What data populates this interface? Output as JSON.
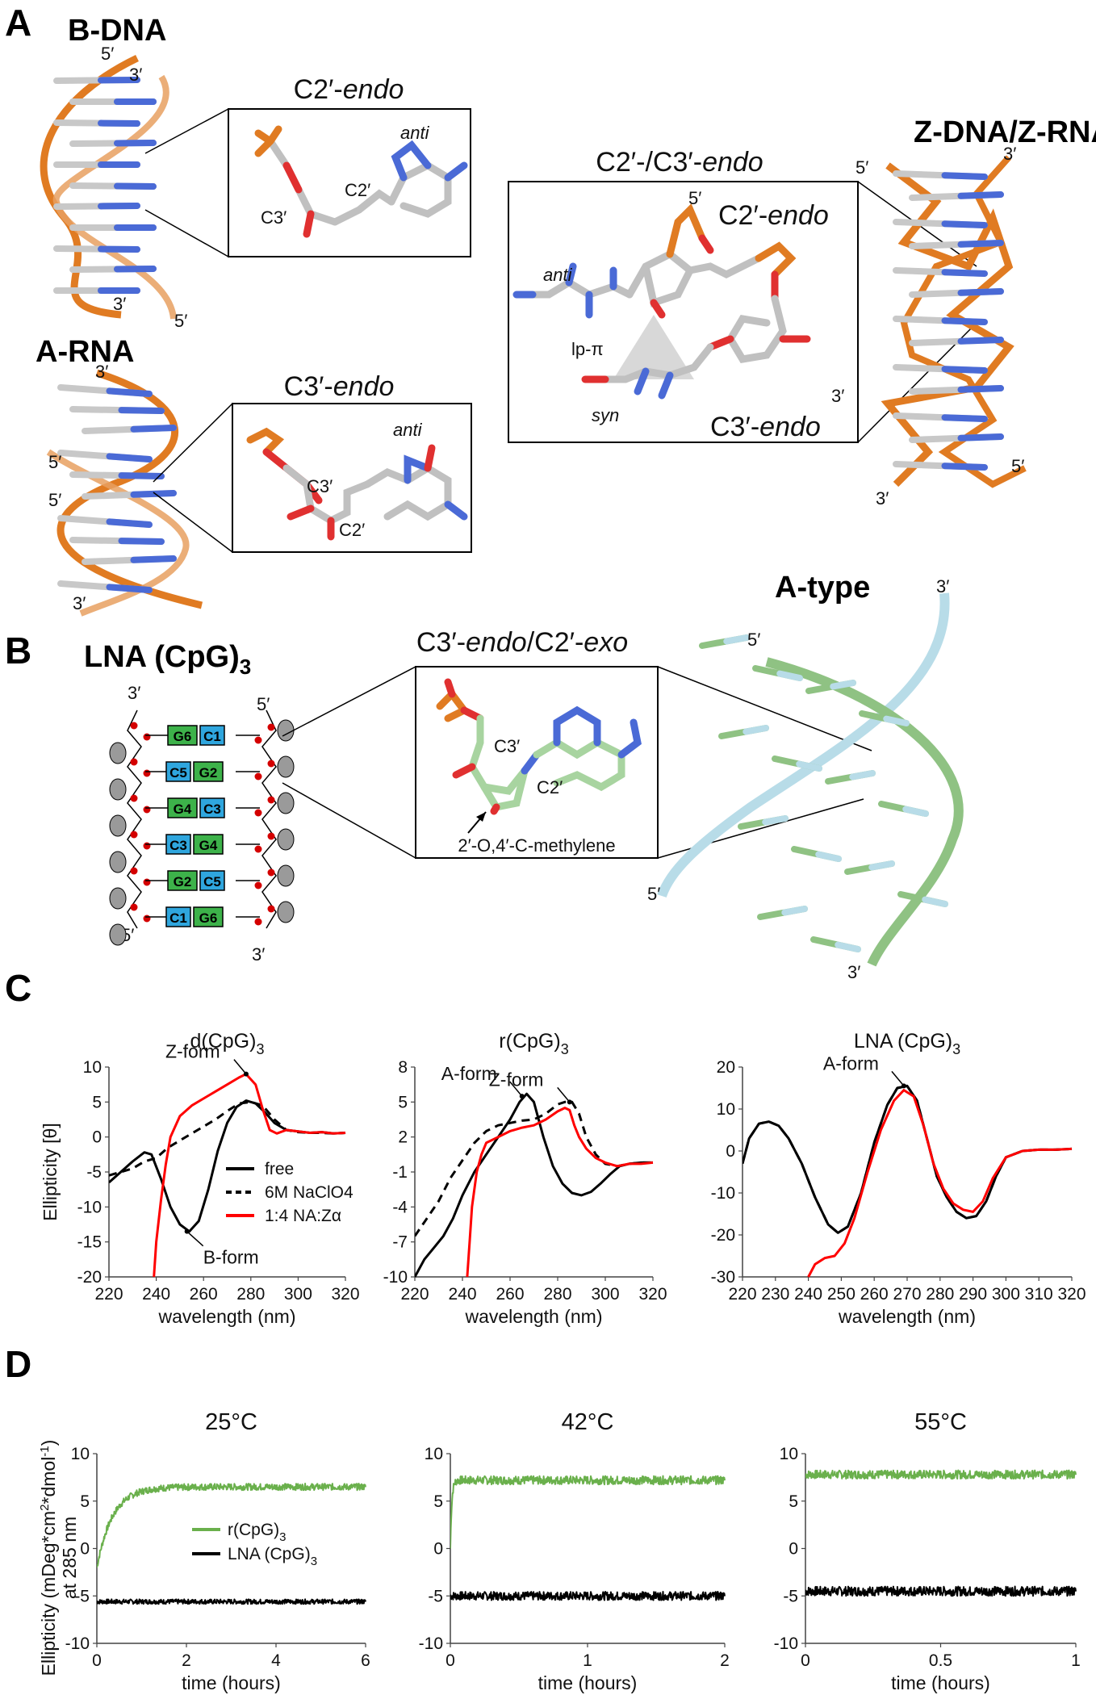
{
  "panelA": {
    "letter": "A",
    "bdna": {
      "title": "B-DNA",
      "end5_top": "5′",
      "end3_top": "3′",
      "end3_bot": "3′",
      "end5_bot": "5′"
    },
    "inset_c2endo": {
      "title_prefix": "C2′-",
      "title_italic": "endo",
      "anti": "anti",
      "c2": "C2′",
      "c3": "C3′"
    },
    "arna": {
      "title": "A-RNA",
      "end3_top": "3′",
      "end5_a": "5′",
      "end5_b": "5′",
      "end3_bot": "3′"
    },
    "inset_c3endo": {
      "title_prefix": "C3′-",
      "title_italic": "endo",
      "anti": "anti",
      "c3": "C3′",
      "c2": "C2′"
    },
    "zdna": {
      "title": "Z-DNA/Z-RNA",
      "end5_top": "5′",
      "end3_top": "3′",
      "end5_bot": "5′",
      "end3_bot": "3′"
    },
    "inset_mixed": {
      "title_prefix": "C2′-/C3′-",
      "title_italic": "endo",
      "anti": "anti",
      "syn": "syn",
      "lp": "lp-π",
      "five": "5′",
      "three": "3′",
      "c2_prefix": "C2′-",
      "c2_italic": "endo",
      "c3_prefix": "C3′-",
      "c3_italic": "endo"
    }
  },
  "panelB": {
    "letter": "B",
    "lna_title": "LNA (CpG)",
    "lna_sub": "3",
    "ladder_top_left": "3′",
    "ladder_top_right": "5′",
    "ladder_bot_left": "5′",
    "ladder_bot_right": "3′",
    "pairs": [
      {
        "left": "G6",
        "right": "C1",
        "leftColor": "#3db24a",
        "rightColor": "#2fa6de"
      },
      {
        "left": "C5",
        "right": "G2",
        "leftColor": "#2fa6de",
        "rightColor": "#3db24a"
      },
      {
        "left": "G4",
        "right": "C3",
        "leftColor": "#3db24a",
        "rightColor": "#2fa6de"
      },
      {
        "left": "C3",
        "right": "G4",
        "leftColor": "#2fa6de",
        "rightColor": "#3db24a"
      },
      {
        "left": "G2",
        "right": "C5",
        "leftColor": "#3db24a",
        "rightColor": "#2fa6de"
      },
      {
        "left": "C1",
        "right": "G6",
        "leftColor": "#2fa6de",
        "rightColor": "#3db24a"
      }
    ],
    "inset": {
      "title_prefix": "C3′-",
      "title_italic1": "endo",
      "title_mid": "/C2′-",
      "title_italic2": "exo",
      "c3": "C3′",
      "c2": "C2′",
      "methylene": "2′-O,4′-C-methylene"
    },
    "atype": {
      "title": "A-type",
      "end3_top": "3′",
      "end5_top": "5′",
      "end5_bot": "5′",
      "end3_bot": "3′"
    }
  },
  "panelC": {
    "letter": "C",
    "ylabel": "Ellipticity [θ]",
    "xlabel": "wavelength (nm)",
    "legend": [
      {
        "name": "free",
        "color": "#000000",
        "dash": "solid"
      },
      {
        "name": "6M NaClO4",
        "color": "#000000",
        "dash": "dashed"
      },
      {
        "name": "1:4 NA:Zα",
        "color": "#ff0000",
        "dash": "solid"
      }
    ]
  },
  "panelD": {
    "letter": "D",
    "ylabel_line1": "Ellipticity (mDeg*cm",
    "ylabel_sup1": "2",
    "ylabel_mid": "*dmol",
    "ylabel_sup2": "-1",
    "ylabel_end": ")",
    "ylabel_line2": "at 285 nm",
    "xlabel": "time (hours)",
    "legend": [
      {
        "name": "r(CpG)",
        "sub": "3",
        "color": "#6ab04c"
      },
      {
        "name": "LNA (CpG)",
        "sub": "3",
        "color": "#000000"
      }
    ]
  },
  "chart_data": [
    {
      "type": "line",
      "title": "d(CpG)3",
      "xlabel": "wavelength (nm)",
      "ylabel": "Ellipticity [θ]",
      "xlim": [
        220,
        320
      ],
      "ylim": [
        -20,
        10
      ],
      "xticks": [
        220,
        240,
        260,
        280,
        300,
        320
      ],
      "yticks": [
        -20,
        -15,
        -10,
        -5,
        0,
        5,
        10
      ],
      "annotations": [
        {
          "text": "Z-form",
          "x": 278,
          "y": 9
        },
        {
          "text": "B-form",
          "x": 253,
          "y": -13.5
        }
      ],
      "series": [
        {
          "name": "free",
          "color": "#000000",
          "dash": "solid",
          "x": [
            220,
            225,
            230,
            235,
            238,
            242,
            246,
            250,
            254,
            258,
            262,
            266,
            270,
            274,
            278,
            282,
            286,
            290,
            295,
            300,
            305,
            310,
            315,
            320
          ],
          "y": [
            -6.5,
            -5,
            -3.5,
            -2.2,
            -2.5,
            -6,
            -10,
            -12.5,
            -13.5,
            -12,
            -7.5,
            -2,
            2,
            4.3,
            5.2,
            4.8,
            3.5,
            2,
            1,
            0.8,
            0.6,
            0.7,
            0.5,
            0.6
          ]
        },
        {
          "name": "6M NaClO4",
          "color": "#000000",
          "dash": "dashed",
          "x": [
            220,
            225,
            230,
            235,
            240,
            245,
            250,
            255,
            260,
            265,
            270,
            275,
            280,
            285,
            290,
            295,
            300,
            305,
            310,
            315,
            320
          ],
          "y": [
            -5.5,
            -5,
            -4.5,
            -3.5,
            -3,
            -1.5,
            -0.5,
            0.5,
            1.5,
            2.5,
            3.7,
            4.8,
            5,
            4.5,
            2.5,
            1,
            0.7,
            0.6,
            0.6,
            0.5,
            0.6
          ]
        },
        {
          "name": "1:4 NA:Zα",
          "color": "#ff0000",
          "dash": "solid",
          "x": [
            239,
            240,
            242,
            244,
            246,
            250,
            255,
            260,
            265,
            270,
            275,
            278,
            282,
            285,
            288,
            291,
            295,
            300,
            305,
            310,
            315,
            320
          ],
          "y": [
            -20,
            -15,
            -9,
            -4,
            0,
            3,
            4.5,
            5.5,
            6.5,
            7.5,
            8.5,
            9,
            7.5,
            4,
            1,
            0.5,
            1,
            0.8,
            0.6,
            0.7,
            0.5,
            0.6
          ]
        }
      ]
    },
    {
      "type": "line",
      "title": "r(CpG)3",
      "xlabel": "wavelength (nm)",
      "ylabel": "",
      "xlim": [
        220,
        320
      ],
      "ylim": [
        -10,
        8
      ],
      "xticks": [
        220,
        240,
        260,
        280,
        300,
        320
      ],
      "yticks": [
        -10,
        -7,
        -4,
        -1,
        2,
        5,
        8
      ],
      "annotations": [
        {
          "text": "A-form",
          "x": 265,
          "y": 5.5
        },
        {
          "text": "Z-form",
          "x": 285,
          "y": 5
        }
      ],
      "series": [
        {
          "name": "free",
          "color": "#000000",
          "dash": "solid",
          "x": [
            220,
            224,
            228,
            232,
            236,
            240,
            245,
            250,
            255,
            260,
            264,
            267,
            270,
            274,
            278,
            282,
            286,
            290,
            294,
            298,
            302,
            306,
            310,
            315,
            320
          ],
          "y": [
            -10,
            -8.5,
            -7.5,
            -6.5,
            -5,
            -3,
            -1,
            0.5,
            2,
            3.5,
            5,
            5.7,
            5,
            2,
            -0.5,
            -2,
            -2.8,
            -3,
            -2.7,
            -2,
            -1.2,
            -0.5,
            -0.3,
            -0.2,
            -0.2
          ]
        },
        {
          "name": "6M NaClO4",
          "color": "#000000",
          "dash": "dashed",
          "x": [
            220,
            225,
            230,
            235,
            240,
            245,
            250,
            255,
            260,
            265,
            270,
            275,
            280,
            283,
            286,
            289,
            292,
            296,
            300,
            305,
            310,
            315,
            320
          ],
          "y": [
            -6.5,
            -5,
            -3.5,
            -1.5,
            0,
            1.5,
            2.5,
            3,
            3.2,
            3.4,
            3.5,
            4,
            4.8,
            5,
            5,
            4,
            2,
            0.5,
            -0.3,
            -0.5,
            -0.3,
            -0.2,
            -0.2
          ]
        },
        {
          "name": "1:4 NA:Zα",
          "color": "#ff0000",
          "dash": "solid",
          "x": [
            242,
            243,
            244,
            246,
            248,
            250,
            255,
            260,
            265,
            270,
            275,
            280,
            283,
            285,
            287,
            289,
            292,
            296,
            300,
            305,
            310,
            315,
            320
          ],
          "y": [
            -10,
            -7,
            -4,
            -1,
            0.5,
            1.5,
            2,
            2.5,
            2.8,
            3,
            3.5,
            4.2,
            4.5,
            4.3,
            3,
            2,
            1,
            0.2,
            -0.2,
            -0.5,
            -0.3,
            -0.3,
            -0.2
          ]
        }
      ]
    },
    {
      "type": "line",
      "title": "LNA (CpG)3",
      "xlabel": "wavelength (nm)",
      "ylabel": "",
      "xlim": [
        220,
        320
      ],
      "ylim": [
        -30,
        20
      ],
      "xticks": [
        220,
        230,
        240,
        250,
        260,
        270,
        280,
        290,
        300,
        310,
        320
      ],
      "yticks": [
        -30,
        -20,
        -10,
        0,
        10,
        20
      ],
      "annotations": [
        {
          "text": "A-form",
          "x": 269,
          "y": 15.5
        }
      ],
      "series": [
        {
          "name": "free",
          "color": "#000000",
          "dash": "solid",
          "x": [
            220,
            222,
            225,
            228,
            231,
            234,
            238,
            242,
            246,
            249,
            252,
            256,
            260,
            264,
            267,
            270,
            273,
            276,
            279,
            282,
            285,
            288,
            291,
            294,
            297,
            300,
            305,
            310,
            315,
            320
          ],
          "y": [
            -3,
            3,
            6.5,
            7,
            6,
            3,
            -3,
            -11,
            -17.5,
            -19.5,
            -18,
            -10,
            2,
            11,
            15,
            15.5,
            12,
            3,
            -6,
            -11,
            -14.5,
            -16,
            -15.5,
            -12,
            -6,
            -1.5,
            0,
            0.3,
            0.3,
            0.5
          ]
        },
        {
          "name": "6M NaClO4",
          "color": "#000000",
          "dash": "dashed",
          "x": [
            220,
            222,
            225,
            228,
            231,
            234,
            238,
            242,
            246,
            249,
            252,
            256,
            260,
            264,
            267,
            270,
            273,
            276,
            279,
            282,
            285,
            288,
            291,
            294,
            297,
            300,
            305,
            310,
            315,
            320
          ],
          "y": [
            -3,
            3,
            6.5,
            7,
            6,
            3,
            -3,
            -11,
            -17.5,
            -19.5,
            -18,
            -10,
            2,
            11,
            15,
            15.5,
            12,
            3,
            -6,
            -11,
            -14.5,
            -16,
            -15.5,
            -12,
            -6,
            -1.5,
            0,
            0.3,
            0.3,
            0.5
          ]
        },
        {
          "name": "1:4 NA:Zα",
          "color": "#ff0000",
          "dash": "solid",
          "x": [
            240,
            242,
            245,
            248,
            251,
            254,
            258,
            262,
            266,
            269,
            272,
            275,
            278,
            281,
            284,
            287,
            290,
            293,
            296,
            300,
            305,
            310,
            315,
            320
          ],
          "y": [
            -30,
            -27,
            -25.5,
            -25,
            -22,
            -16,
            -5,
            5,
            12,
            14.5,
            13,
            6,
            -3,
            -9,
            -12.5,
            -14,
            -14.5,
            -12,
            -6.5,
            -1.5,
            0,
            0.3,
            0.3,
            0.5
          ]
        }
      ]
    },
    {
      "type": "line",
      "title": "25°C",
      "xlabel": "time (hours)",
      "ylabel": "Ellipticity (mDeg*cm2*dmol-1) at 285 nm",
      "xlim": [
        0,
        6
      ],
      "ylim": [
        -10,
        10
      ],
      "xticks": [
        0,
        2,
        4,
        6
      ],
      "yticks": [
        -10,
        -5,
        0,
        5,
        10
      ],
      "series": [
        {
          "name": "r(CpG)3",
          "color": "#6ab04c",
          "model": "exp",
          "start": -2,
          "plateau": 6.5,
          "tau": 0.35,
          "noise": 0.35
        },
        {
          "name": "LNA (CpG)3",
          "color": "#000000",
          "model": "flat",
          "level": -5.6,
          "noise": 0.25
        }
      ]
    },
    {
      "type": "line",
      "title": "42°C",
      "xlabel": "time (hours)",
      "ylabel": "",
      "xlim": [
        0,
        2
      ],
      "ylim": [
        -10,
        10
      ],
      "xticks": [
        0,
        1,
        2
      ],
      "yticks": [
        -10,
        -5,
        0,
        5,
        10
      ],
      "series": [
        {
          "name": "r(CpG)3",
          "color": "#6ab04c",
          "model": "exp",
          "start": 0,
          "plateau": 7.2,
          "tau": 0.01,
          "noise": 0.45
        },
        {
          "name": "LNA (CpG)3",
          "color": "#000000",
          "model": "flat",
          "level": -5,
          "noise": 0.45
        }
      ]
    },
    {
      "type": "line",
      "title": "55°C",
      "xlabel": "time (hours)",
      "ylabel": "",
      "xlim": [
        0,
        1
      ],
      "ylim": [
        -10,
        10
      ],
      "xticks": [
        0,
        0.5,
        1
      ],
      "yticks": [
        -10,
        -5,
        0,
        5,
        10
      ],
      "series": [
        {
          "name": "r(CpG)3",
          "color": "#6ab04c",
          "model": "flat",
          "level": 7.8,
          "noise": 0.45
        },
        {
          "name": "LNA (CpG)3",
          "color": "#000000",
          "model": "flat",
          "level": -4.5,
          "noise": 0.5
        }
      ]
    }
  ]
}
